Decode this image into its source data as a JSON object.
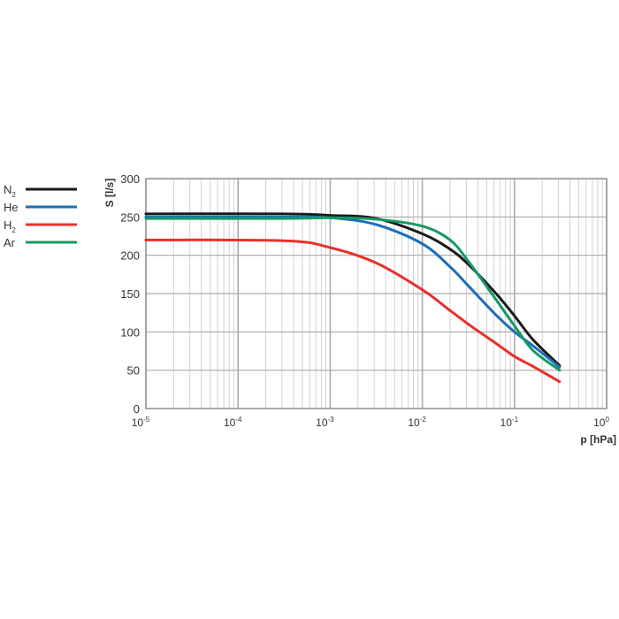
{
  "chart_data": {
    "type": "line",
    "title": "",
    "xlabel": "p [hPa]",
    "ylabel": "S [l/s]",
    "xscale": "log",
    "xlim": [
      1e-05,
      1
    ],
    "ylim": [
      0,
      300
    ],
    "x_tick_labels": [
      {
        "base": "10",
        "exp": "-5"
      },
      {
        "base": "10",
        "exp": "-4"
      },
      {
        "base": "10",
        "exp": "-3"
      },
      {
        "base": "10",
        "exp": "-2"
      },
      {
        "base": "10",
        "exp": "-1"
      },
      {
        "base": "10",
        "exp": "0"
      }
    ],
    "y_ticks": [
      0,
      50,
      100,
      150,
      200,
      250,
      300
    ],
    "grid": true,
    "legend_position": "left",
    "series": [
      {
        "name": "N",
        "sub": "2",
        "color": "#1a1a1a",
        "log10_p": [
          -5,
          -3.5,
          -3,
          -2.5,
          -2,
          -1.7,
          -1.5,
          -1.2,
          -1,
          -0.8,
          -0.51
        ],
        "values": [
          254,
          254,
          252,
          248,
          228,
          208,
          188,
          150,
          121,
          90,
          56
        ]
      },
      {
        "name": "He",
        "sub": "",
        "color": "#1d6fb8",
        "log10_p": [
          -5,
          -3.5,
          -3,
          -2.5,
          -2,
          -1.7,
          -1.5,
          -1.2,
          -1,
          -0.8,
          -0.51
        ],
        "values": [
          250,
          250,
          249,
          240,
          215,
          185,
          160,
          122,
          100,
          82,
          54
        ]
      },
      {
        "name": "H",
        "sub": "2",
        "color": "#e8302a",
        "log10_p": [
          -5,
          -3.5,
          -3,
          -2.5,
          -2,
          -1.7,
          -1.5,
          -1.2,
          -1,
          -0.8,
          -0.51
        ],
        "values": [
          220,
          219,
          210,
          190,
          155,
          128,
          110,
          85,
          68,
          55,
          35
        ]
      },
      {
        "name": "Ar",
        "sub": "",
        "color": "#159a62",
        "log10_p": [
          -5,
          -3.5,
          -3,
          -2.5,
          -2,
          -1.7,
          -1.5,
          -1.2,
          -1,
          -0.8,
          -0.51
        ],
        "values": [
          248,
          248,
          249,
          247,
          238,
          220,
          192,
          142,
          108,
          76,
          50
        ]
      }
    ]
  }
}
